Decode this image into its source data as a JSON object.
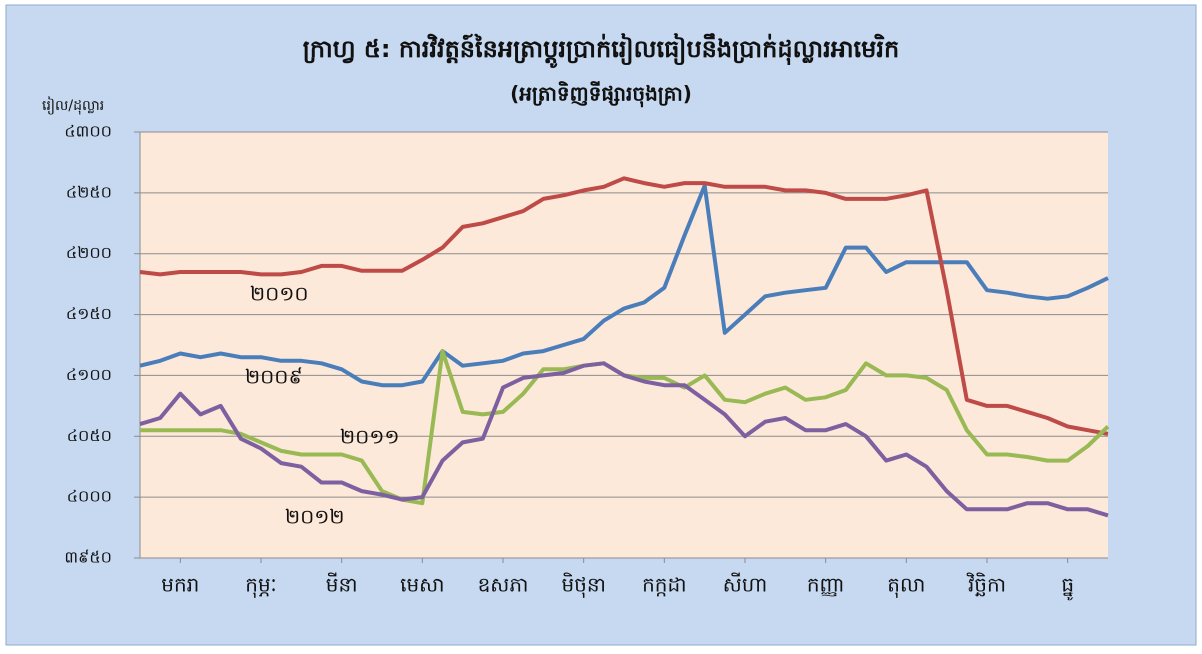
{
  "chart_data": {
    "type": "line",
    "title": "ក្រាហ្វ ៥: ការវិវត្តន៍នៃអត្រាប្តូរប្រាក់រៀលធៀបនឹងប្រាក់ដុល្លារអាមេរិក",
    "subtitle": "(អត្រាទិញទីផ្សារចុងគ្រា)",
    "y_label": "រៀល/ដុល្លារ",
    "xlim": [
      0,
      12
    ],
    "xticks": [
      {
        "value": 0.5,
        "label": "មករា"
      },
      {
        "value": 1.5,
        "label": "កុម្ភៈ"
      },
      {
        "value": 2.5,
        "label": "មីនា"
      },
      {
        "value": 3.5,
        "label": "មេសា"
      },
      {
        "value": 4.5,
        "label": "ឧសភា"
      },
      {
        "value": 5.5,
        "label": "មិថុនា"
      },
      {
        "value": 6.5,
        "label": "កក្កដា"
      },
      {
        "value": 7.5,
        "label": "សីហា"
      },
      {
        "value": 8.5,
        "label": "កញ្ញា"
      },
      {
        "value": 9.5,
        "label": "តុលា"
      },
      {
        "value": 10.5,
        "label": "វិច្ឆិកា"
      },
      {
        "value": 11.5,
        "label": "ធ្នូ"
      }
    ],
    "ylim": [
      3950,
      4300
    ],
    "yticks": [
      {
        "value": 3950,
        "label": "៣៩៥០"
      },
      {
        "value": 4000,
        "label": "៤០០០"
      },
      {
        "value": 4050,
        "label": "៤០៥០"
      },
      {
        "value": 4100,
        "label": "៤១០០"
      },
      {
        "value": 4150,
        "label": "៤១៥០"
      },
      {
        "value": 4200,
        "label": "៤២០០"
      },
      {
        "value": 4250,
        "label": "៤២៥០"
      },
      {
        "value": 4300,
        "label": "៤៣០០"
      }
    ],
    "grid": true,
    "x": [
      0,
      0.25,
      0.5,
      0.75,
      1,
      1.25,
      1.5,
      1.75,
      2,
      2.25,
      2.5,
      2.75,
      3,
      3.25,
      3.5,
      3.75,
      4,
      4.25,
      4.5,
      4.75,
      5,
      5.25,
      5.5,
      5.75,
      6,
      6.25,
      6.5,
      6.75,
      7,
      7.25,
      7.5,
      7.75,
      8,
      8.25,
      8.5,
      8.75,
      9,
      9.25,
      9.5,
      9.75,
      10,
      10.25,
      10.5,
      10.75,
      11,
      11.25,
      11.5,
      11.75,
      12
    ],
    "series": [
      {
        "name": "២០០៩",
        "color": "#4a7ebb",
        "values": [
          4108,
          4112,
          4118,
          4115,
          4118,
          4115,
          4115,
          4112,
          4112,
          4110,
          4105,
          4095,
          4092,
          4092,
          4095,
          4120,
          4108,
          4110,
          4112,
          4118,
          4120,
          4125,
          4130,
          4145,
          4155,
          4160,
          4172,
          4215,
          4256,
          4135,
          4150,
          4165,
          4168,
          4170,
          4172,
          4205,
          4205,
          4185,
          4193,
          4193,
          4193,
          4193,
          4170,
          4168,
          4165,
          4163,
          4165,
          4172,
          4180
        ]
      },
      {
        "name": "២០១០",
        "color": "#be4b48",
        "values": [
          4185,
          4183,
          4185,
          4185,
          4185,
          4185,
          4183,
          4183,
          4185,
          4190,
          4190,
          4186,
          4186,
          4186,
          4195,
          4205,
          4222,
          4225,
          4230,
          4235,
          4245,
          4248,
          4252,
          4255,
          4262,
          4258,
          4255,
          4258,
          4258,
          4255,
          4255,
          4255,
          4252,
          4252,
          4250,
          4245,
          4245,
          4245,
          4248,
          4252,
          4170,
          4080,
          4075,
          4075,
          4070,
          4065,
          4058,
          4055,
          4052
        ]
      },
      {
        "name": "២០១១",
        "color": "#98b954",
        "values": [
          4055,
          4055,
          4055,
          4055,
          4055,
          4052,
          4045,
          4038,
          4035,
          4035,
          4035,
          4030,
          4005,
          3998,
          3995,
          4120,
          4070,
          4068,
          4070,
          4085,
          4105,
          4105,
          4108,
          4110,
          4100,
          4098,
          4098,
          4090,
          4100,
          4080,
          4078,
          4085,
          4090,
          4080,
          4082,
          4088,
          4110,
          4100,
          4100,
          4098,
          4088,
          4055,
          4035,
          4035,
          4033,
          4030,
          4030,
          4042,
          4058
        ]
      },
      {
        "name": "២០១២",
        "color": "#7d60a0",
        "values": [
          4060,
          4065,
          4085,
          4068,
          4075,
          4048,
          4040,
          4028,
          4025,
          4012,
          4012,
          4005,
          4002,
          3998,
          4000,
          4030,
          4045,
          4048,
          4090,
          4098,
          4100,
          4102,
          4108,
          4110,
          4100,
          4095,
          4092,
          4092,
          4080,
          4068,
          4050,
          4062,
          4065,
          4055,
          4055,
          4060,
          4050,
          4030,
          4035,
          4025,
          4005,
          3990,
          3990,
          3990,
          3995,
          3995,
          3990,
          3990,
          3985
        ]
      }
    ]
  }
}
